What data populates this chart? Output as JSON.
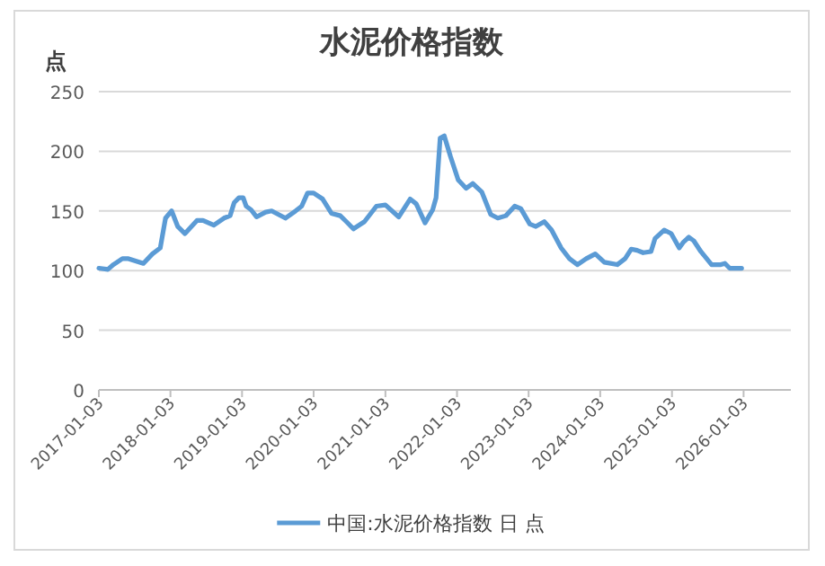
{
  "chart_data": {
    "type": "line",
    "title": "水泥价格指数",
    "ylabel": "点",
    "x": [
      "2017-01-03",
      "2017-02-18",
      "2017-03-18",
      "2017-05-03",
      "2017-06-03",
      "2017-08-18",
      "2017-10-03",
      "2017-11-12",
      "2017-12-09",
      "2018-01-09",
      "2018-02-09",
      "2018-03-18",
      "2018-05-18",
      "2018-06-18",
      "2018-08-12",
      "2018-10-03",
      "2018-11-03",
      "2018-11-24",
      "2018-12-18",
      "2019-01-09",
      "2019-01-24",
      "2019-02-18",
      "2019-03-18",
      "2019-05-03",
      "2019-06-03",
      "2019-08-12",
      "2019-10-03",
      "2019-11-03",
      "2019-12-03",
      "2020-01-03",
      "2020-02-18",
      "2020-04-03",
      "2020-05-18",
      "2020-06-18",
      "2020-07-24",
      "2020-09-18",
      "2020-11-18",
      "2021-01-03",
      "2021-03-12",
      "2021-05-09",
      "2021-06-09",
      "2021-07-24",
      "2021-09-01",
      "2021-09-18",
      "2021-10-09",
      "2021-10-30",
      "2021-11-30",
      "2022-01-09",
      "2022-02-18",
      "2022-03-24",
      "2022-05-09",
      "2022-06-24",
      "2022-07-30",
      "2022-09-09",
      "2022-10-24",
      "2022-11-24",
      "2023-01-09",
      "2023-02-09",
      "2023-03-24",
      "2023-04-30",
      "2023-06-18",
      "2023-07-30",
      "2023-09-09",
      "2023-10-24",
      "2023-12-09",
      "2024-01-24",
      "2024-03-30",
      "2024-05-09",
      "2024-06-09",
      "2024-07-09",
      "2024-08-09",
      "2024-09-18",
      "2024-10-09",
      "2024-11-24",
      "2024-12-30",
      "2025-02-09",
      "2025-03-03",
      "2025-03-30",
      "2025-04-24",
      "2025-05-30",
      "2025-07-24",
      "2025-09-09",
      "2025-09-30",
      "2025-10-24",
      "2025-12-24"
    ],
    "series": [
      {
        "name": "中国:水泥价格指数 日 点",
        "color": "#5b9bd5",
        "values": [
          102,
          101,
          105,
          110,
          110,
          106,
          114,
          119,
          144,
          150,
          137,
          131,
          142,
          142,
          138,
          144,
          146,
          157,
          161,
          161,
          154,
          151,
          145,
          149,
          150,
          144,
          150,
          154,
          165,
          165,
          160,
          148,
          146,
          141,
          135,
          141,
          154,
          155,
          145,
          160,
          156,
          140,
          151,
          161,
          211,
          213,
          196,
          176,
          169,
          173,
          166,
          147,
          144,
          146,
          154,
          152,
          139,
          137,
          141,
          134,
          119,
          110,
          105,
          110,
          114,
          107,
          105,
          110,
          118,
          117,
          115,
          116,
          127,
          134,
          131,
          119,
          124,
          128,
          125,
          116,
          105,
          105,
          106,
          102,
          102
        ]
      }
    ],
    "xlim": [
      "2017-01-03",
      "2026-09-01"
    ],
    "xticks": [
      "2017-01-03",
      "2018-01-03",
      "2019-01-03",
      "2020-01-03",
      "2021-01-03",
      "2022-01-03",
      "2023-01-03",
      "2024-01-03",
      "2025-01-03",
      "2026-01-03"
    ],
    "ylim": [
      0,
      250
    ],
    "yticks": [
      0,
      50,
      100,
      150,
      200,
      250
    ],
    "grid": "y",
    "legend": "bottom"
  }
}
